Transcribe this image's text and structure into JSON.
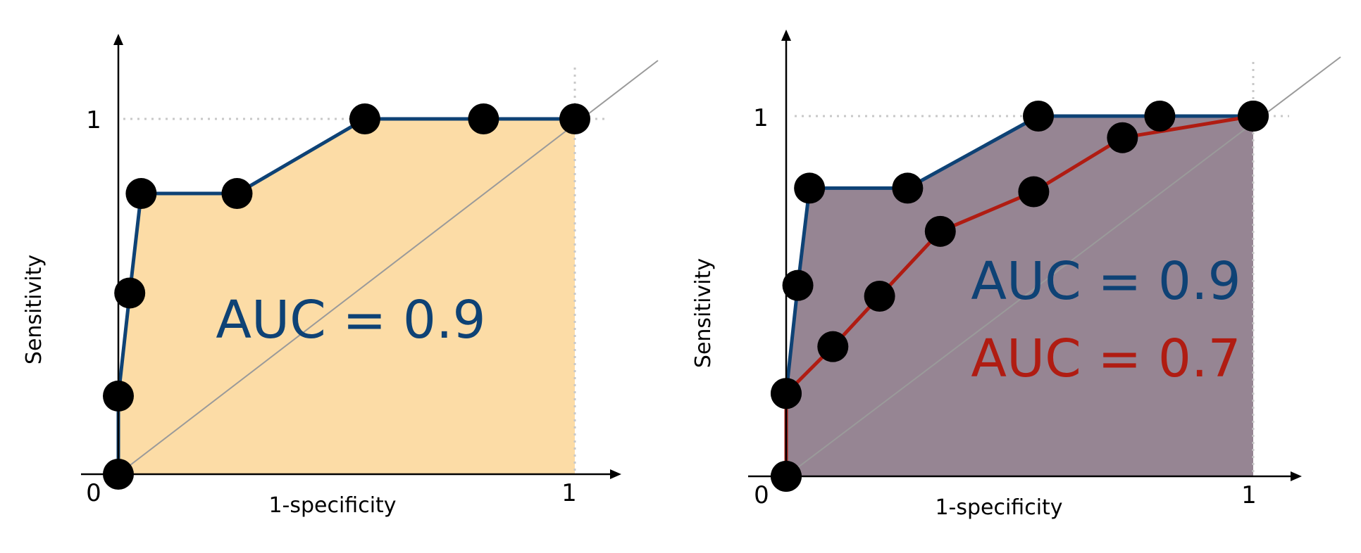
{
  "colors": {
    "blue": "#0e4275",
    "red": "#b01c12",
    "orange_fill": "#fcdca6",
    "purple_fill": "#968593",
    "pink_fill": "#e4aeac",
    "point": "#000000",
    "diagonal": "#9a9a9a",
    "guide": "#c8c8c8",
    "axis": "#000000"
  },
  "chart_data": [
    {
      "type": "line",
      "xlabel": "1-specificity",
      "ylabel": "Sensitivity",
      "xlim": [
        0,
        1
      ],
      "ylim": [
        0,
        1
      ],
      "x_ticks": [
        "0",
        "1"
      ],
      "y_ticks": [
        "1"
      ],
      "diagonal": true,
      "annotations": [
        "AUC = 0.9"
      ],
      "series": [
        {
          "color": "blue",
          "fill": "orange_fill",
          "points": [
            [
              0,
              0
            ],
            [
              0.0,
              0.22
            ],
            [
              0.025,
              0.51
            ],
            [
              0.05,
              0.79
            ],
            [
              0.26,
              0.79
            ],
            [
              0.54,
              1.0
            ],
            [
              0.8,
              1.0
            ],
            [
              1.0,
              1.0
            ]
          ]
        }
      ]
    },
    {
      "type": "line",
      "xlabel": "1-specificity",
      "ylabel": "Sensitivity",
      "xlim": [
        0,
        1
      ],
      "ylim": [
        0,
        1
      ],
      "x_ticks": [
        "0",
        "1"
      ],
      "y_ticks": [
        "1"
      ],
      "diagonal": true,
      "annotations": [
        "AUC = 0.9",
        "AUC = 0.7"
      ],
      "series": [
        {
          "color": "blue",
          "fill": "purple_fill",
          "points": [
            [
              0,
              0
            ],
            [
              0.0,
              0.23
            ],
            [
              0.025,
              0.53
            ],
            [
              0.05,
              0.8
            ],
            [
              0.26,
              0.8
            ],
            [
              0.54,
              1.0
            ],
            [
              0.8,
              1.0
            ],
            [
              1.0,
              1.0
            ]
          ]
        },
        {
          "color": "red",
          "fill": "pink_fill",
          "points": [
            [
              0,
              0
            ],
            [
              0.0,
              0.23
            ],
            [
              0.1,
              0.36
            ],
            [
              0.2,
              0.5
            ],
            [
              0.33,
              0.68
            ],
            [
              0.53,
              0.79
            ],
            [
              0.72,
              0.94
            ],
            [
              1.0,
              1.0
            ]
          ]
        }
      ]
    }
  ]
}
